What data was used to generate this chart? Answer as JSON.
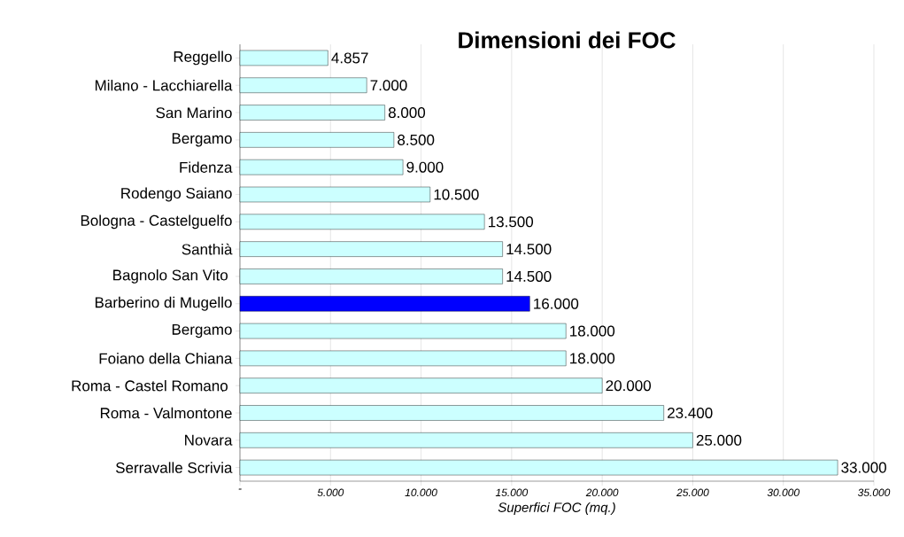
{
  "chart_data": {
    "type": "bar",
    "orientation": "horizontal",
    "title": "Dimensioni dei FOC",
    "xlabel": "Superfici FOC (mq.)",
    "categories": [
      "Reggello",
      "Milano - Lacchiarella",
      "San Marino",
      "Bergamo",
      "Fidenza",
      "Rodengo Saiano",
      "Bologna - Castelguelfo",
      "Santhià",
      "Bagnolo San Vito ",
      "Barberino di Mugello",
      "Bergamo",
      "Foiano della Chiana",
      "Roma - Castel Romano ",
      "Roma - Valmontone",
      "Novara",
      "Serravalle Scrivia"
    ],
    "values": [
      4857,
      7000,
      8000,
      8500,
      9000,
      10500,
      13500,
      14500,
      14500,
      16000,
      18000,
      18000,
      20000,
      23400,
      25000,
      33000
    ],
    "value_labels": [
      "4.857",
      "7.000",
      "8.000",
      "8.500",
      "9.000",
      "10.500",
      "13.500",
      "14.500",
      "14.500",
      "16.000",
      "18.000",
      "18.000",
      "20.000",
      "23.400",
      "25.000",
      "33.000"
    ],
    "colors": [
      "#ccffff",
      "#ccffff",
      "#ccffff",
      "#ccffff",
      "#ccffff",
      "#ccffff",
      "#ccffff",
      "#ccffff",
      "#ccffff",
      "#0000ff",
      "#ccffff",
      "#ccffff",
      "#ccffff",
      "#ccffff",
      "#ccffff",
      "#ccffff"
    ],
    "xlim": [
      0,
      35000
    ],
    "xticks": [
      {
        "value": 0,
        "label": "-"
      },
      {
        "value": 5000,
        "label": "5.000"
      },
      {
        "value": 10000,
        "label": "10.000"
      },
      {
        "value": 15000,
        "label": "15.000"
      },
      {
        "value": 20000,
        "label": "20.000"
      },
      {
        "value": 25000,
        "label": "25.000"
      },
      {
        "value": 30000,
        "label": "30.000"
      },
      {
        "value": 35000,
        "label": "35.000"
      }
    ],
    "grid": "x"
  }
}
